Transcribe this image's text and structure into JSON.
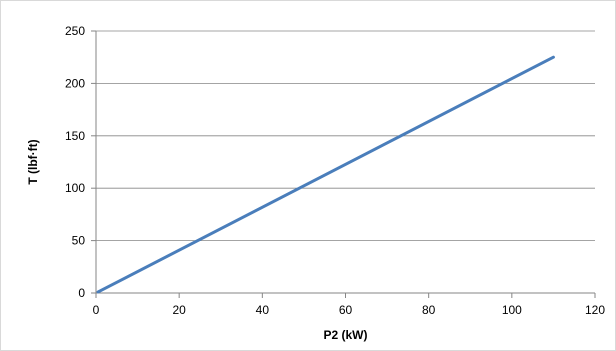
{
  "chart_data": {
    "type": "line",
    "title": "",
    "xlabel": "P2 (kW)",
    "ylabel": "T (lbf·ft)",
    "xlim": [
      0,
      120
    ],
    "ylim": [
      0,
      250
    ],
    "x_ticks": [
      0,
      20,
      40,
      60,
      80,
      100,
      120
    ],
    "y_ticks": [
      0,
      50,
      100,
      150,
      200,
      250
    ],
    "grid": "horizontal",
    "legend": "none",
    "series": [
      {
        "color": "#4a7ebb",
        "x": [
          0.5,
          110
        ],
        "y": [
          1,
          225
        ]
      }
    ]
  }
}
